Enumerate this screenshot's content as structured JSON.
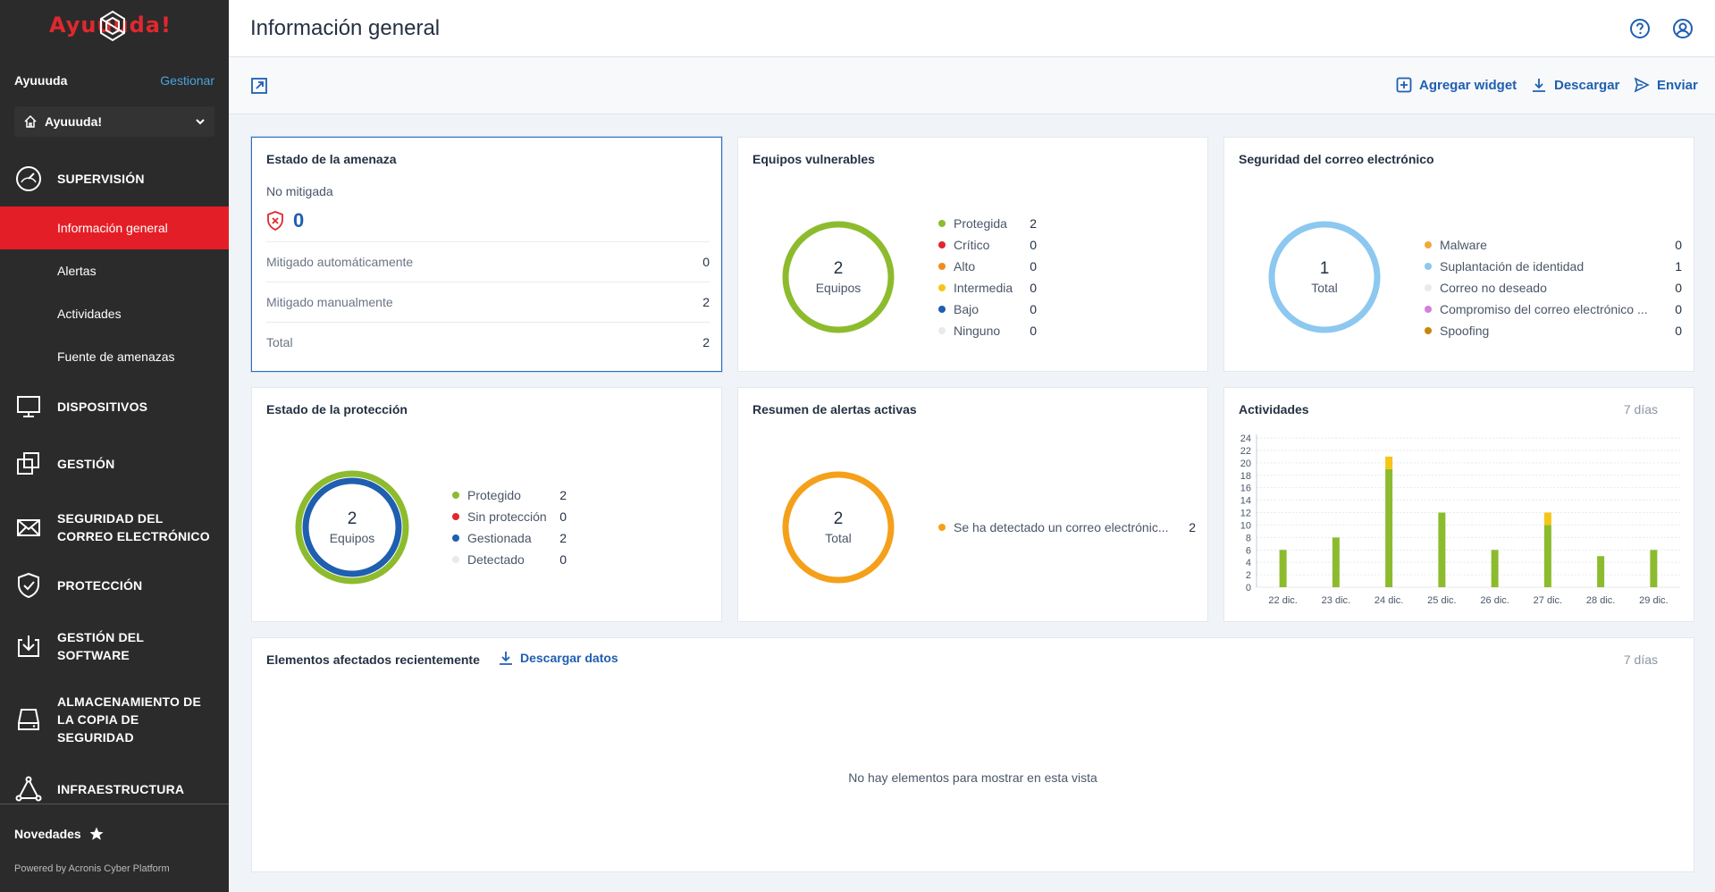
{
  "sidebar": {
    "logo_text": "Ayuuuda!",
    "tenant_label": "Ayuuuda",
    "manage_label": "Gestionar",
    "tenant_selected": "Ayuuuda!",
    "sections": [
      {
        "label": "SUPERVISIÓN",
        "icon": "gauge-icon"
      },
      {
        "label": "DISPOSITIVOS",
        "icon": "monitor-icon"
      },
      {
        "label": "GESTIÓN",
        "icon": "copy-icon"
      },
      {
        "label": "SEGURIDAD DEL CORREO ELECTRÓNICO",
        "icon": "envelope-icon"
      },
      {
        "label": "PROTECCIÓN",
        "icon": "shield-check-icon"
      },
      {
        "label": "GESTIÓN DEL SOFTWARE",
        "icon": "download-box-icon"
      },
      {
        "label": "ALMACENAMIENTO DE LA COPIA DE SEGURIDAD",
        "icon": "drive-icon"
      },
      {
        "label": "INFRAESTRUCTURA",
        "icon": "network-icon"
      }
    ],
    "sub_items": [
      "Información general",
      "Alertas",
      "Actividades",
      "Fuente de amenazas"
    ],
    "news_label": "Novedades",
    "powered_by": "Powered by Acronis Cyber Platform"
  },
  "header": {
    "title": "Información general"
  },
  "toolbar": {
    "add_widget": "Agregar widget",
    "download": "Descargar",
    "send": "Enviar"
  },
  "widgets": {
    "threat": {
      "title": "Estado de la amenaza",
      "subtitle": "No mitigada",
      "count": "0",
      "rows": [
        {
          "label": "Mitigado automáticamente",
          "value": "0"
        },
        {
          "label": "Mitigado manualmente",
          "value": "2"
        },
        {
          "label": "Total",
          "value": "2"
        }
      ]
    },
    "vulnerable": {
      "title": "Equipos vulnerables",
      "center_value": "2",
      "center_label": "Equipos",
      "legend": [
        {
          "label": "Protegida",
          "value": "2",
          "color": "#8dbb2e"
        },
        {
          "label": "Crítico",
          "value": "0",
          "color": "#e0282e"
        },
        {
          "label": "Alto",
          "value": "0",
          "color": "#f28b1e"
        },
        {
          "label": "Intermedia",
          "value": "0",
          "color": "#f5c518"
        },
        {
          "label": "Bajo",
          "value": "0",
          "color": "#1f5fb0"
        },
        {
          "label": "Ninguno",
          "value": "0",
          "color": "#e8eaed"
        }
      ]
    },
    "email_security": {
      "title": "Seguridad del correo electrónico",
      "center_value": "1",
      "center_label": "Total",
      "legend": [
        {
          "label": "Malware",
          "value": "0",
          "color": "#f2a93b"
        },
        {
          "label": "Suplantación de identidad",
          "value": "1",
          "color": "#8cc8f0"
        },
        {
          "label": "Correo no deseado",
          "value": "0",
          "color": "#e8eaed"
        },
        {
          "label": "Compromiso del correo electrónico ...",
          "value": "0",
          "color": "#d37fdc"
        },
        {
          "label": "Spoofing",
          "value": "0",
          "color": "#c8860a"
        }
      ]
    },
    "protection": {
      "title": "Estado de la protección",
      "center_value": "2",
      "center_label": "Equipos",
      "legend": [
        {
          "label": "Protegido",
          "value": "2",
          "color": "#8dbb2e"
        },
        {
          "label": "Sin protección",
          "value": "0",
          "color": "#e0282e"
        },
        {
          "label": "Gestionada",
          "value": "2",
          "color": "#1f5fb0"
        },
        {
          "label": "Detectado",
          "value": "0",
          "color": "#e8eaed"
        }
      ]
    },
    "alerts": {
      "title": "Resumen de alertas activas",
      "center_value": "2",
      "center_label": "Total",
      "legend": [
        {
          "label": "Se ha detectado un correo electrónic...",
          "value": "2",
          "color": "#f5a01a"
        }
      ]
    },
    "activities": {
      "title": "Actividades",
      "period": "7 días"
    },
    "recent": {
      "title": "Elementos afectados recientemente",
      "download_label": "Descargar datos",
      "period": "7 días",
      "empty_message": "No hay elementos para mostrar en esta vista"
    }
  },
  "chart_data": {
    "type": "bar",
    "stacked": true,
    "categories": [
      "22 dic.",
      "23 dic.",
      "24 dic.",
      "25 dic.",
      "26 dic.",
      "27 dic.",
      "28 dic.",
      "29 dic."
    ],
    "series": [
      {
        "values": [
          6,
          8,
          19,
          12,
          6,
          10,
          5,
          6
        ],
        "color": "#8dbb2e"
      },
      {
        "values": [
          0,
          0,
          2,
          0,
          0,
          2,
          0,
          0
        ],
        "color": "#f5c518"
      }
    ],
    "yticks": [
      0,
      2,
      4,
      6,
      8,
      10,
      12,
      14,
      16,
      18,
      20,
      22,
      24
    ],
    "ylim": [
      0,
      24
    ],
    "grid": true
  }
}
